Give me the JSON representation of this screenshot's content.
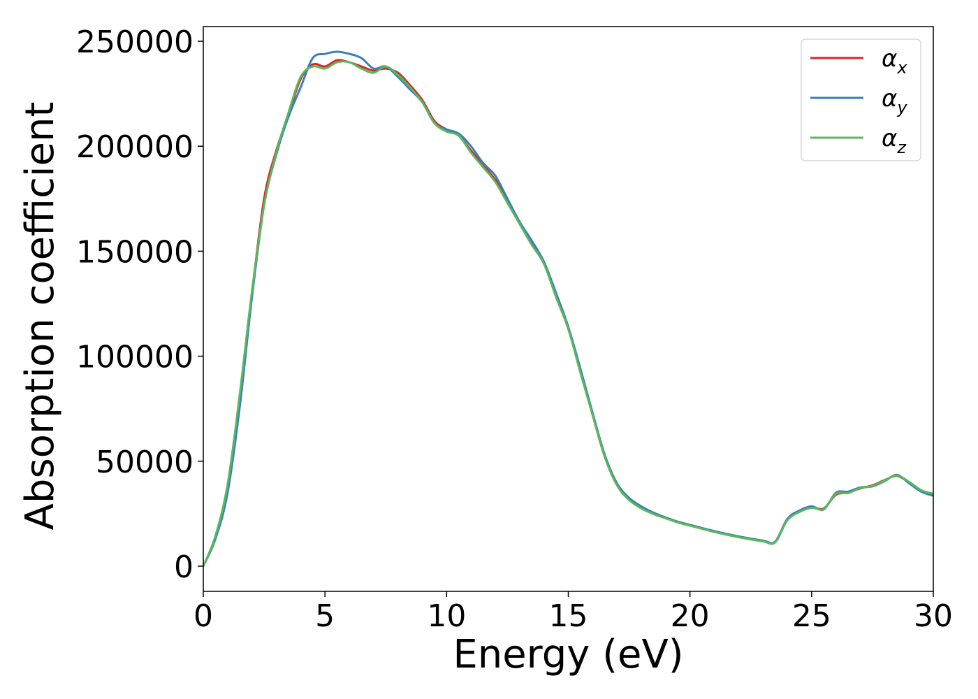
{
  "chart_data": {
    "type": "line",
    "xlabel": "Energy (eV)",
    "ylabel": "Absorption coefficient",
    "xlim": [
      0,
      30
    ],
    "ylim": [
      -12000,
      257000
    ],
    "xticks": [
      0,
      5,
      10,
      15,
      20,
      25,
      30
    ],
    "yticks": [
      0,
      50000,
      100000,
      150000,
      200000,
      250000
    ],
    "grid": false,
    "legend_position": "top-right",
    "series": [
      {
        "name": "α_x",
        "label_base": "α",
        "label_sub": "x",
        "color": "#d62728",
        "x": [
          0,
          0.5,
          1,
          1.5,
          2,
          2.5,
          3,
          3.5,
          4,
          4.5,
          5,
          5.5,
          6,
          6.5,
          7,
          7.5,
          8,
          8.5,
          9,
          9.5,
          10,
          10.5,
          11,
          11.5,
          12,
          12.5,
          13,
          13.5,
          14,
          14.5,
          15,
          15.5,
          16,
          16.5,
          17,
          17.5,
          18,
          18.5,
          19,
          19.5,
          20,
          21,
          22,
          23,
          23.5,
          24,
          24.5,
          25,
          25.5,
          26,
          26.5,
          27,
          27.5,
          28,
          28.5,
          29,
          29.5,
          30
        ],
        "y": [
          0,
          14000,
          38000,
          80000,
          130000,
          175000,
          198000,
          215000,
          232000,
          239000,
          238000,
          241000,
          240000,
          238000,
          236000,
          237000,
          235000,
          229000,
          222000,
          212000,
          208000,
          205000,
          198000,
          191000,
          184000,
          174000,
          163000,
          154000,
          144000,
          129000,
          113000,
          93000,
          72000,
          52000,
          39000,
          32000,
          28000,
          25000,
          23000,
          21000,
          19500,
          16500,
          14000,
          12000,
          11500,
          22000,
          26000,
          28000,
          27500,
          34000,
          35000,
          37000,
          38500,
          41000,
          43000,
          40000,
          36000,
          34000
        ]
      },
      {
        "name": "α_y",
        "label_base": "α",
        "label_sub": "y",
        "color": "#3a7ebd",
        "x": [
          0,
          0.5,
          1,
          1.5,
          2,
          2.5,
          3,
          3.5,
          4,
          4.5,
          5,
          5.5,
          6,
          6.5,
          7,
          7.5,
          8,
          8.5,
          9,
          9.5,
          10,
          10.5,
          11,
          11.5,
          12,
          12.5,
          13,
          13.5,
          14,
          14.5,
          15,
          15.5,
          16,
          16.5,
          17,
          17.5,
          18,
          18.5,
          19,
          19.5,
          20,
          21,
          22,
          23,
          23.5,
          24,
          24.5,
          25,
          25.5,
          26,
          26.5,
          27,
          27.5,
          28,
          28.5,
          29,
          29.5,
          30
        ],
        "y": [
          0,
          13000,
          35000,
          76000,
          128000,
          172000,
          196000,
          214000,
          228000,
          242000,
          244000,
          245000,
          244000,
          242000,
          237000,
          238000,
          233000,
          227000,
          221000,
          211000,
          208000,
          206000,
          200000,
          192000,
          186000,
          175000,
          164000,
          155000,
          145000,
          130000,
          114000,
          94000,
          73000,
          53000,
          39500,
          32500,
          28500,
          25500,
          23200,
          21200,
          19700,
          16700,
          14200,
          12200,
          11700,
          22500,
          26500,
          28500,
          27000,
          35000,
          35500,
          37500,
          38000,
          40500,
          43500,
          39500,
          35500,
          33500
        ]
      },
      {
        "name": "α_z",
        "label_base": "α",
        "label_sub": "z",
        "color": "#5cb85c",
        "x": [
          0,
          0.5,
          1,
          1.5,
          2,
          2.5,
          3,
          3.5,
          4,
          4.5,
          5,
          5.5,
          6,
          6.5,
          7,
          7.5,
          8,
          8.5,
          9,
          9.5,
          10,
          10.5,
          11,
          11.5,
          12,
          12.5,
          13,
          13.5,
          14,
          14.5,
          15,
          15.5,
          16,
          16.5,
          17,
          17.5,
          18,
          18.5,
          19,
          19.5,
          20,
          21,
          22,
          23,
          23.5,
          24,
          24.5,
          25,
          25.5,
          26,
          26.5,
          27,
          27.5,
          28,
          28.5,
          29,
          29.5,
          30
        ],
        "y": [
          0,
          14500,
          39000,
          82000,
          131000,
          172000,
          197000,
          216000,
          233000,
          238000,
          237000,
          240000,
          240000,
          237000,
          235000,
          238000,
          234000,
          228000,
          221000,
          211000,
          207000,
          205000,
          197000,
          190000,
          183000,
          173000,
          163000,
          153000,
          144000,
          128000,
          113000,
          92000,
          72000,
          52000,
          38500,
          31500,
          27500,
          24800,
          22800,
          20800,
          19300,
          16300,
          13800,
          11800,
          11300,
          21800,
          25800,
          27800,
          27200,
          34500,
          34800,
          37200,
          38200,
          40800,
          43200,
          40200,
          36200,
          34500
        ]
      }
    ]
  }
}
